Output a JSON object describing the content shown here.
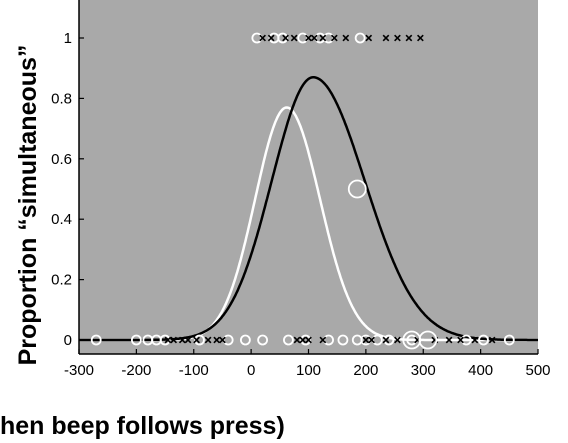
{
  "chart_data": {
    "type": "scatter",
    "title": "",
    "xlabel": "hen beep follows press)",
    "ylabel": "Proportion “simultaneous”",
    "xlim": [
      -300,
      500
    ],
    "ylim": [
      0,
      1
    ],
    "x_ticks": [
      -300,
      -200,
      -100,
      0,
      100,
      200,
      300,
      400,
      500
    ],
    "y_ticks": [
      0,
      0.2,
      0.4,
      0.6,
      0.8,
      1
    ],
    "x_tick_labels": [
      "-300",
      "-200",
      "-100",
      "0",
      "100",
      "200",
      "300",
      "400",
      "500"
    ],
    "y_tick_labels": [
      "0",
      "0.2",
      "0.4",
      "0.6",
      "0.8",
      "1"
    ],
    "background_color": "#a9a9a9",
    "grid": false,
    "series": [
      {
        "marker": "circle",
        "color": "#ffffff",
        "points_y1": [
          10,
          40,
          55,
          90,
          120,
          135,
          190
        ],
        "points_y0": [
          -270,
          -200,
          -180,
          -165,
          -150,
          -90,
          -40,
          -10,
          20,
          65,
          95,
          135,
          160,
          185,
          200,
          220,
          240,
          280,
          375,
          405,
          450
        ]
      },
      {
        "marker": "x",
        "color": "#000000",
        "points_y1": [
          20,
          35,
          60,
          75,
          100,
          110,
          125,
          145,
          165,
          205,
          235,
          255,
          275,
          295
        ],
        "points_y0": [
          -145,
          -135,
          -120,
          -110,
          -95,
          -75,
          -60,
          -50,
          80,
          90,
          100,
          125,
          200,
          210,
          235,
          255,
          290,
          320,
          345,
          365,
          390,
          420
        ]
      },
      {
        "marker": "circle-large",
        "color": "#ffffff",
        "points": [
          {
            "x": 185,
            "y": 0.5,
            "size": 1
          },
          {
            "x": 280,
            "y": 0,
            "size": 1
          },
          {
            "x": 308,
            "y": 0,
            "size": 1
          }
        ]
      },
      {
        "type": "curve",
        "color": "#ffffff",
        "peak_x": 62,
        "peak_y": 0.77,
        "left_sigma": 55,
        "right_sigma": 58
      },
      {
        "type": "curve",
        "color": "#000000",
        "peak_x": 108,
        "peak_y": 0.87,
        "left_sigma": 72,
        "right_sigma": 90
      }
    ]
  }
}
